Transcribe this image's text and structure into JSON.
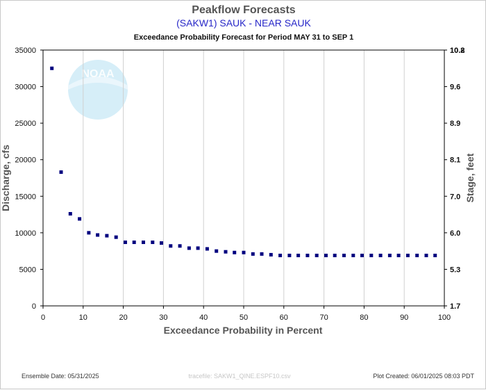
{
  "header": {
    "title": "Peakflow Forecasts",
    "station": "(SAKW1) SAUK - NEAR SAUK",
    "period": "Exceedance Probability Forecast for Period MAY 31 to SEP 1"
  },
  "watermark": {
    "text": "NOAA"
  },
  "footer": {
    "ensemble_date": "Ensemble Date: 05/31/2025",
    "tracefile": "tracefile: SAKW1_QINE.ESPF10.csv",
    "plot_created": "Plot Created: 06/01/2025 08:03 PDT"
  },
  "colors": {
    "marker": "#00007f",
    "grid": "#d0d0d0",
    "axis": "#000000",
    "watermark": "#d6eef8"
  },
  "chart_data": {
    "type": "scatter",
    "title": "Peakflow Forecasts",
    "subtitle": "(SAKW1) SAUK - NEAR SAUK",
    "xlabel": "Exceedance Probability in Percent",
    "ylabel": "Discharge, cfs",
    "y2label": "Stage, feet",
    "xlim": [
      0,
      100
    ],
    "ylim": [
      0,
      35000
    ],
    "xticks": [
      "0",
      "10",
      "20",
      "30",
      "40",
      "50",
      "60",
      "70",
      "80",
      "90",
      "100"
    ],
    "yticks": [
      "0",
      "5000",
      "10000",
      "15000",
      "20000",
      "25000",
      "30000",
      "35000"
    ],
    "y2ticks": [
      "1.7",
      "5.3",
      "6.0",
      "7.0",
      "8.1",
      "8.9",
      "9.6",
      "10.2",
      "10.8"
    ],
    "grid": "vertical",
    "x": [
      2.2,
      4.5,
      6.8,
      9.1,
      11.4,
      13.6,
      15.9,
      18.2,
      20.5,
      22.7,
      25.0,
      27.3,
      29.5,
      31.8,
      34.1,
      36.4,
      38.6,
      40.9,
      43.2,
      45.5,
      47.7,
      50.0,
      52.3,
      54.5,
      56.8,
      59.1,
      61.4,
      63.6,
      65.9,
      68.2,
      70.5,
      72.7,
      75.0,
      77.3,
      79.5,
      81.8,
      84.1,
      86.4,
      88.6,
      90.9,
      93.2,
      95.5,
      97.7
    ],
    "y": [
      32500,
      18300,
      12600,
      11900,
      10000,
      9700,
      9600,
      9400,
      8700,
      8700,
      8700,
      8700,
      8600,
      8200,
      8200,
      7900,
      7900,
      7800,
      7500,
      7400,
      7300,
      7300,
      7100,
      7100,
      7000,
      6900,
      6900,
      6900,
      6900,
      6900,
      6900,
      6900,
      6900,
      6900,
      6900,
      6900,
      6900,
      6900,
      6900,
      6900,
      6900,
      6900,
      6900
    ]
  }
}
